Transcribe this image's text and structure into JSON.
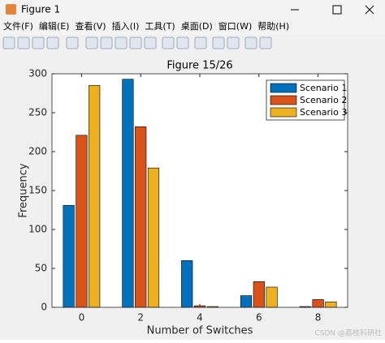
{
  "window": {
    "title": "Figure 1",
    "menu": [
      "文件(F)",
      "编辑(E)",
      "查看(V)",
      "插入(I)",
      "工具(T)",
      "桌面(D)",
      "窗口(W)",
      "帮助(H)"
    ]
  },
  "chart_data": {
    "type": "bar",
    "title": "Figure 15/26",
    "x_label": "Number of Switches",
    "y_label": "Frequency",
    "x": [
      0,
      2,
      4,
      6,
      8
    ],
    "series": [
      {
        "name": "Scenario 1",
        "color": "#0072BD",
        "values": [
          131,
          293,
          60,
          15,
          1
        ]
      },
      {
        "name": "Scenario 2",
        "color": "#D95319",
        "values": [
          221,
          232,
          2,
          33,
          10
        ]
      },
      {
        "name": "Scenario 3",
        "color": "#EDB120",
        "values": [
          285,
          179,
          1,
          26,
          7
        ]
      }
    ],
    "xlim": [
      -1,
      9
    ],
    "xticks": [
      0,
      2,
      4,
      6,
      8
    ],
    "ylim": [
      0,
      300
    ],
    "yticks": [
      0,
      50,
      100,
      150,
      200,
      250,
      300
    ],
    "legend": "top-right",
    "grid": false
  },
  "watermark": "CSDN @荔枝科研社"
}
